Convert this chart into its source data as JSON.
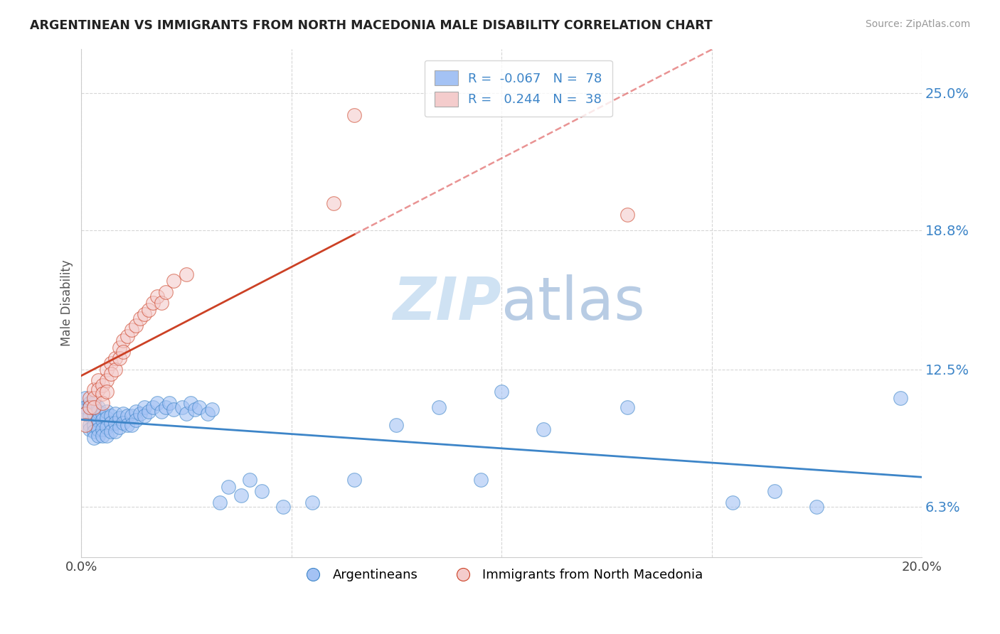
{
  "title": "ARGENTINEAN VS IMMIGRANTS FROM NORTH MACEDONIA MALE DISABILITY CORRELATION CHART",
  "source": "Source: ZipAtlas.com",
  "ylabel": "Male Disability",
  "xlim": [
    0.0,
    0.2
  ],
  "ylim": [
    0.04,
    0.27
  ],
  "yticks": [
    0.063,
    0.125,
    0.188,
    0.25
  ],
  "ytick_labels": [
    "6.3%",
    "12.5%",
    "18.8%",
    "25.0%"
  ],
  "xticks": [
    0.0,
    0.05,
    0.1,
    0.15,
    0.2
  ],
  "xtick_labels": [
    "0.0%",
    "",
    "",
    "",
    "20.0%"
  ],
  "legend_R1": "-0.067",
  "legend_N1": "78",
  "legend_R2": "0.244",
  "legend_N2": "38",
  "blue_color": "#a4c2f4",
  "pink_color": "#f4cccc",
  "blue_line_color": "#3d85c8",
  "pink_line_color": "#cc4125",
  "pink_dash_color": "#e06666",
  "watermark_color": "#cfe2f3",
  "background_color": "#ffffff",
  "grid_color": "#cccccc",
  "argentinean_x": [
    0.001,
    0.001,
    0.001,
    0.002,
    0.002,
    0.002,
    0.002,
    0.002,
    0.003,
    0.003,
    0.003,
    0.003,
    0.003,
    0.003,
    0.004,
    0.004,
    0.004,
    0.004,
    0.004,
    0.005,
    0.005,
    0.005,
    0.005,
    0.006,
    0.006,
    0.006,
    0.006,
    0.007,
    0.007,
    0.007,
    0.008,
    0.008,
    0.008,
    0.009,
    0.009,
    0.01,
    0.01,
    0.011,
    0.011,
    0.012,
    0.012,
    0.013,
    0.013,
    0.014,
    0.015,
    0.015,
    0.016,
    0.017,
    0.018,
    0.019,
    0.02,
    0.021,
    0.022,
    0.024,
    0.025,
    0.026,
    0.027,
    0.028,
    0.03,
    0.031,
    0.033,
    0.035,
    0.038,
    0.04,
    0.043,
    0.048,
    0.055,
    0.065,
    0.075,
    0.085,
    0.095,
    0.1,
    0.11,
    0.13,
    0.155,
    0.165,
    0.175,
    0.195
  ],
  "argentinean_y": [
    0.112,
    0.108,
    0.105,
    0.11,
    0.108,
    0.104,
    0.1,
    0.098,
    0.11,
    0.108,
    0.105,
    0.1,
    0.097,
    0.094,
    0.108,
    0.106,
    0.102,
    0.098,
    0.095,
    0.105,
    0.102,
    0.098,
    0.095,
    0.106,
    0.103,
    0.099,
    0.095,
    0.104,
    0.101,
    0.097,
    0.105,
    0.101,
    0.097,
    0.103,
    0.099,
    0.105,
    0.101,
    0.104,
    0.1,
    0.104,
    0.1,
    0.106,
    0.102,
    0.105,
    0.108,
    0.104,
    0.106,
    0.108,
    0.11,
    0.106,
    0.108,
    0.11,
    0.107,
    0.108,
    0.105,
    0.11,
    0.107,
    0.108,
    0.105,
    0.107,
    0.065,
    0.072,
    0.068,
    0.075,
    0.07,
    0.063,
    0.065,
    0.075,
    0.1,
    0.108,
    0.075,
    0.115,
    0.098,
    0.108,
    0.065,
    0.07,
    0.063,
    0.112
  ],
  "macedonia_x": [
    0.001,
    0.001,
    0.002,
    0.002,
    0.003,
    0.003,
    0.003,
    0.004,
    0.004,
    0.005,
    0.005,
    0.005,
    0.006,
    0.006,
    0.006,
    0.007,
    0.007,
    0.008,
    0.008,
    0.009,
    0.009,
    0.01,
    0.01,
    0.011,
    0.012,
    0.013,
    0.014,
    0.015,
    0.016,
    0.017,
    0.018,
    0.019,
    0.02,
    0.022,
    0.025,
    0.06,
    0.065,
    0.13
  ],
  "macedonia_y": [
    0.105,
    0.1,
    0.112,
    0.108,
    0.116,
    0.112,
    0.108,
    0.12,
    0.116,
    0.118,
    0.114,
    0.11,
    0.125,
    0.12,
    0.115,
    0.128,
    0.123,
    0.13,
    0.125,
    0.135,
    0.13,
    0.138,
    0.133,
    0.14,
    0.143,
    0.145,
    0.148,
    0.15,
    0.152,
    0.155,
    0.158,
    0.155,
    0.16,
    0.165,
    0.168,
    0.2,
    0.24,
    0.195
  ]
}
